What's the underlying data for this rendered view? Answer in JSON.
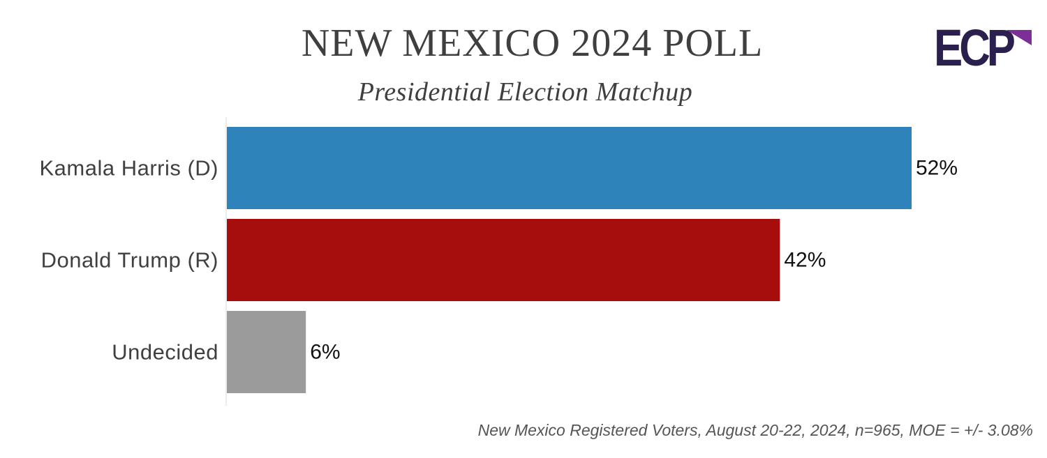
{
  "header": {
    "title": "NEW MEXICO 2024 POLL",
    "subtitle": "Presidential Election Matchup"
  },
  "logo": {
    "text": "ECP",
    "colors": {
      "dark": "#2b1f4d",
      "accent": "#7b2f97"
    }
  },
  "footnote": "New Mexico Registered Voters, August 20-22, 2024, n=965, MOE = +/- 3.08%",
  "chart_data": {
    "type": "bar",
    "orientation": "horizontal",
    "title": "NEW MEXICO 2024 POLL",
    "subtitle": "Presidential Election Matchup",
    "categories": [
      "Kamala Harris (D)",
      "Donald Trump (R)",
      "Undecided"
    ],
    "values": [
      52,
      42,
      6
    ],
    "value_labels": [
      "52%",
      "42%",
      "6%"
    ],
    "colors": [
      "#2e83ba",
      "#a50e0c",
      "#9b9b9b"
    ],
    "xlim": [
      0,
      52
    ],
    "grid": false,
    "legend": "none"
  }
}
